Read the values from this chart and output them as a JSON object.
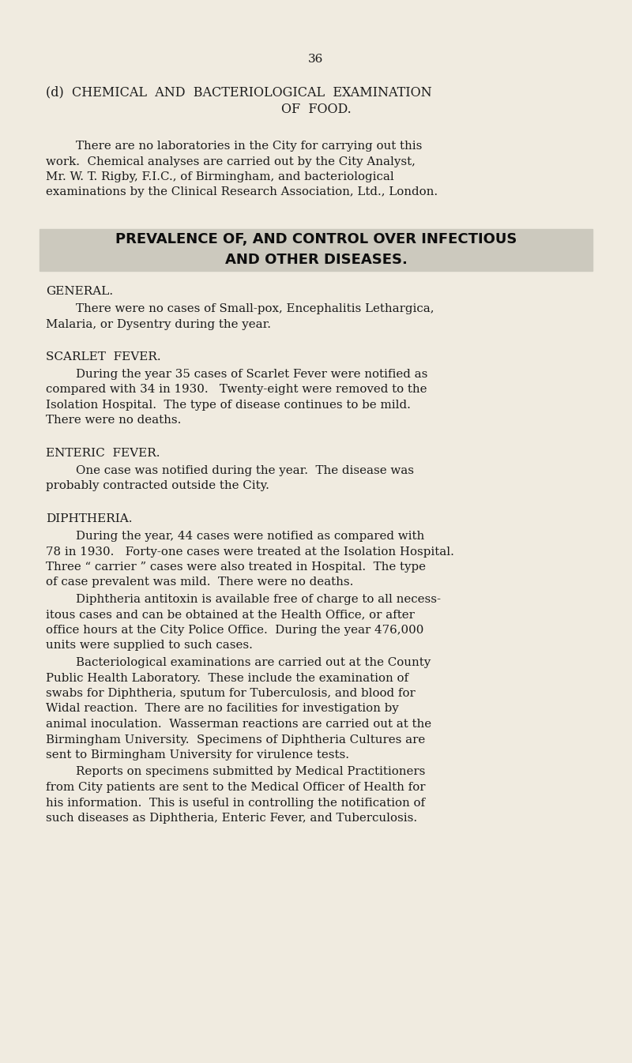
{
  "background_color": "#f0ebe0",
  "text_color": "#1a1a1a",
  "page_number": "36",
  "heading1_line1": "(d)  CHEMICAL  AND  BACTERIOLOGICAL  EXAMINATION",
  "heading1_line2": "OF  FOOD.",
  "para1_lines": [
    "        There are no laboratories in the City for carrying out this",
    "work.  Chemical analyses are carried out by the City Analyst,",
    "Mr. W. T. Rigby, F.I.C., of Birmingham, and bacteriological",
    "examinations by the Clinical Research Association, Ltd., London."
  ],
  "banner_line1": "PREVALENCE OF, AND CONTROL OVER INFECTIOUS",
  "banner_line2": "AND OTHER DISEASES.",
  "banner_bg": "#ccc9be",
  "section_general": "GENERAL.",
  "para_general_lines": [
    "        There were no cases of Small-pox, Encephalitis Lethargica,",
    "Malaria, or Dysentry during the year."
  ],
  "section_scarlet": "SCARLET  FEVER.",
  "para_scarlet_lines": [
    "        During the year 35 cases of Scarlet Fever were notified as",
    "compared with 34 in 1930.   Twenty-eight were removed to the",
    "Isolation Hospital.  The type of disease continues to be mild.",
    "There were no deaths."
  ],
  "section_enteric": "ENTERIC  FEVER.",
  "para_enteric_lines": [
    "        One case was notified during the year.  The disease was",
    "probably contracted outside the City."
  ],
  "section_diph": "DIPHTHERIA.",
  "para_diph1_lines": [
    "        During the year, 44 cases were notified as compared with",
    "78 in 1930.   Forty-one cases were treated at the Isolation Hospital.",
    "Three “ carrier ” cases were also treated in Hospital.  The type",
    "of case prevalent was mild.  There were no deaths."
  ],
  "para_diph2_lines": [
    "        Diphtheria antitoxin is available free of charge to all necess-",
    "itous cases and can be obtained at the Health Office, or after",
    "office hours at the City Police Office.  During the year 476,000",
    "units were supplied to such cases."
  ],
  "para_diph3_lines": [
    "        Bacteriological examinations are carried out at the County",
    "Public Health Laboratory.  These include the examination of",
    "swabs for Diphtheria, sputum for Tuberculosis, and blood for",
    "Widal reaction.  There are no facilities for investigation by",
    "animal inoculation.  Wasserman reactions are carried out at the",
    "Birmingham University.  Specimens of Diphtheria Cultures are",
    "sent to Birmingham University for virulence tests."
  ],
  "para_diph4_lines": [
    "        Reports on specimens submitted by Medical Practitioners",
    "from City patients are sent to the Medical Officer of Health for",
    "his information.  This is useful in controlling the notification of",
    "such diseases as Diphtheria, Enteric Fever, and Tuberculosis."
  ]
}
